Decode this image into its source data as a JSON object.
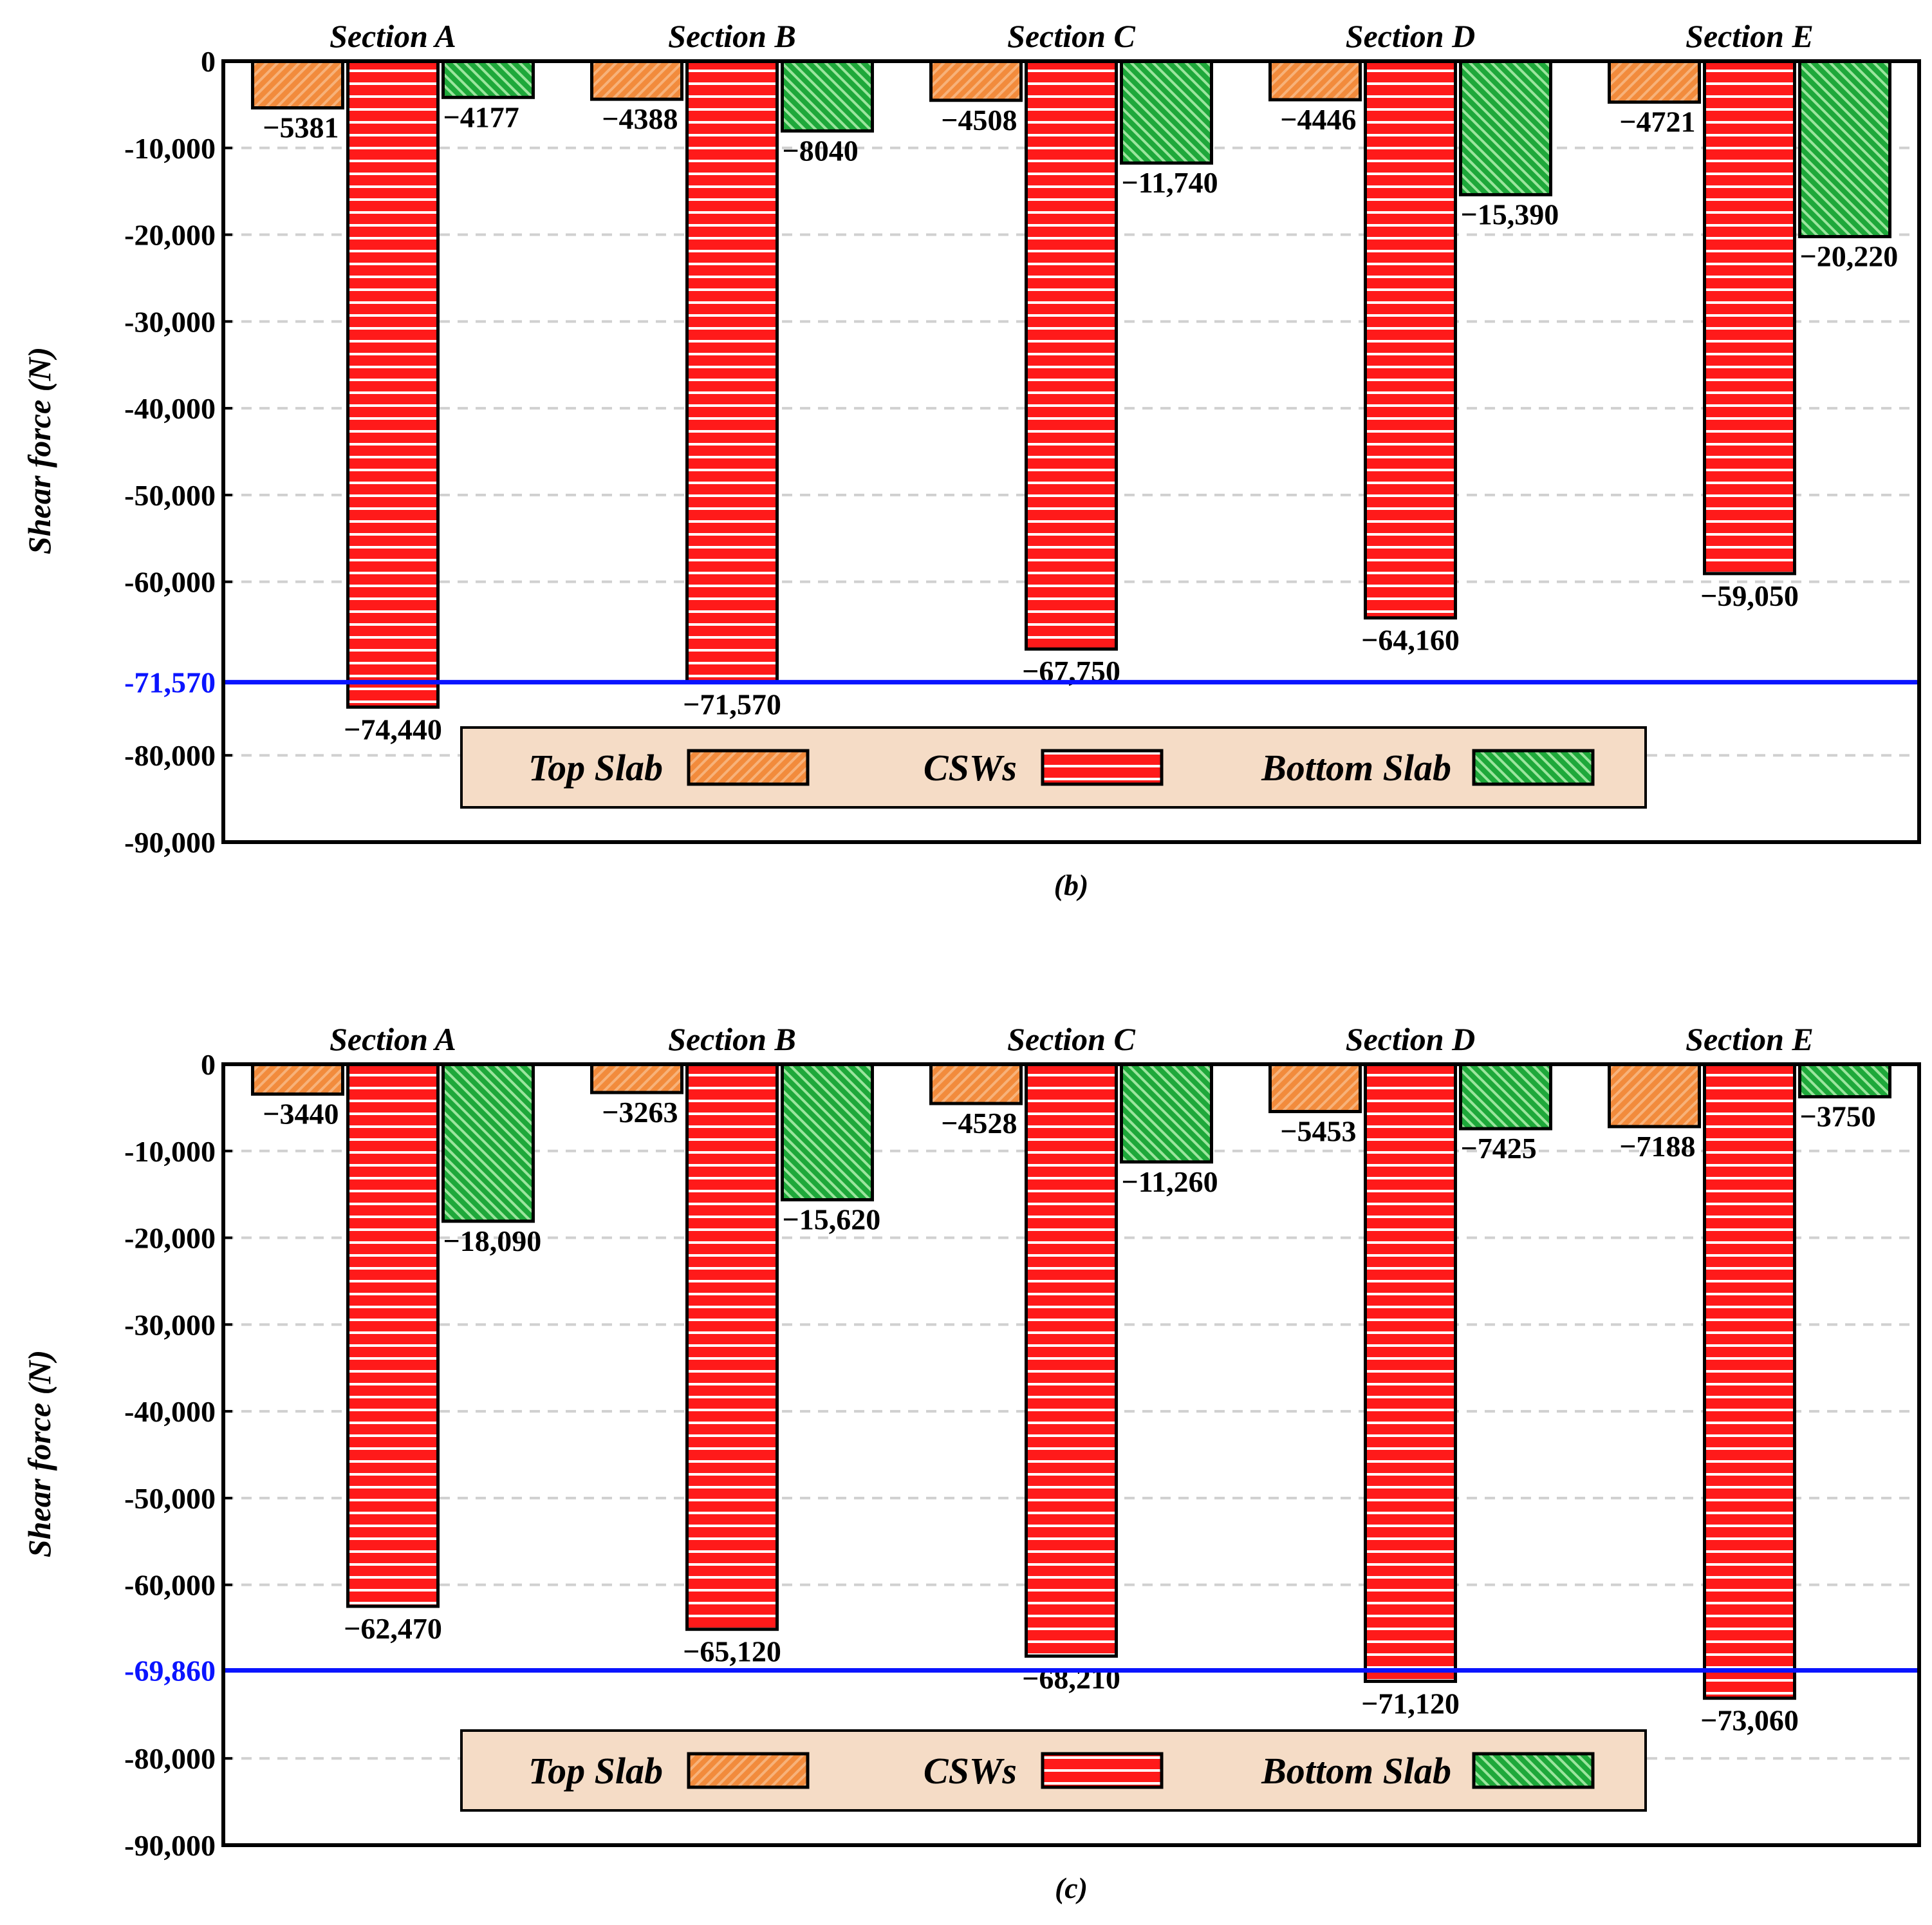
{
  "colors": {
    "top_slab": "#f28b3c",
    "top_slab_hatch": "#f7b27a",
    "csws": "#ff1a1a",
    "csws_hatch": "#ffffff",
    "bottom_slab": "#1ea83a",
    "bottom_slab_hatch": "#9be59d",
    "reference_line": "#0a14ff",
    "grid": "#d0d0d0",
    "legend_bg": "#f5dcc6"
  },
  "chart_data": [
    {
      "type": "bar",
      "caption": "(b)",
      "ylabel": "Shear force (N)",
      "ylim": [
        -90000,
        0
      ],
      "yticks": [
        0,
        -10000,
        -20000,
        -30000,
        -40000,
        -50000,
        -60000,
        -80000,
        -90000
      ],
      "ytick_labels": [
        "0",
        "-10,000",
        "-20,000",
        "-30,000",
        "-40,000",
        "-50,000",
        "-60,000",
        "-80,000",
        "-90,000"
      ],
      "grid": true,
      "categories": [
        "Section A",
        "Section B",
        "Section C",
        "Section D",
        "Section E"
      ],
      "series": [
        {
          "name": "Top Slab",
          "values": [
            -5381,
            -4388,
            -4508,
            -4446,
            -4721
          ],
          "labels": [
            "−5381",
            "−4388",
            "−4508",
            "−4446",
            "−4721"
          ]
        },
        {
          "name": "CSWs",
          "values": [
            -74440,
            -71570,
            -67750,
            -64160,
            -59050
          ],
          "labels": [
            "−74,440",
            "−71,570",
            "−67,750",
            "−64,160",
            "−59,050"
          ]
        },
        {
          "name": "Bottom Slab",
          "values": [
            -4177,
            -8040,
            -11740,
            -15390,
            -20220
          ],
          "labels": [
            "−4177",
            "−8040",
            "−11,740",
            "−15,390",
            "−20,220"
          ]
        }
      ],
      "reference_line": {
        "value": -71570,
        "label": "-71,570"
      },
      "legend": {
        "position": "bottom-center",
        "entries": [
          "Top Slab",
          "CSWs",
          "Bottom Slab"
        ]
      }
    },
    {
      "type": "bar",
      "caption": "(c)",
      "ylabel": "Shear force (N)",
      "ylim": [
        -90000,
        0
      ],
      "yticks": [
        0,
        -10000,
        -20000,
        -30000,
        -40000,
        -50000,
        -60000,
        -80000,
        -90000
      ],
      "ytick_labels": [
        "0",
        "-10,000",
        "-20,000",
        "-30,000",
        "-40,000",
        "-50,000",
        "-60,000",
        "-80,000",
        "-90,000"
      ],
      "grid": true,
      "categories": [
        "Section A",
        "Section B",
        "Section C",
        "Section D",
        "Section E"
      ],
      "series": [
        {
          "name": "Top Slab",
          "values": [
            -3440,
            -3263,
            -4528,
            -5453,
            -7188
          ],
          "labels": [
            "−3440",
            "−3263",
            "−4528",
            "−5453",
            "−7188"
          ]
        },
        {
          "name": "CSWs",
          "values": [
            -62470,
            -65120,
            -68210,
            -71120,
            -73060
          ],
          "labels": [
            "−62,470",
            "−65,120",
            "−68,210",
            "−71,120",
            "−73,060"
          ]
        },
        {
          "name": "Bottom Slab",
          "values": [
            -18090,
            -15620,
            -11260,
            -7425,
            -3750
          ],
          "labels": [
            "−18,090",
            "−15,620",
            "−11,260",
            "−7425",
            "−3750"
          ]
        }
      ],
      "reference_line": {
        "value": -69860,
        "label": "-69,860"
      },
      "legend": {
        "position": "bottom-center",
        "entries": [
          "Top Slab",
          "CSWs",
          "Bottom Slab"
        ]
      }
    }
  ]
}
